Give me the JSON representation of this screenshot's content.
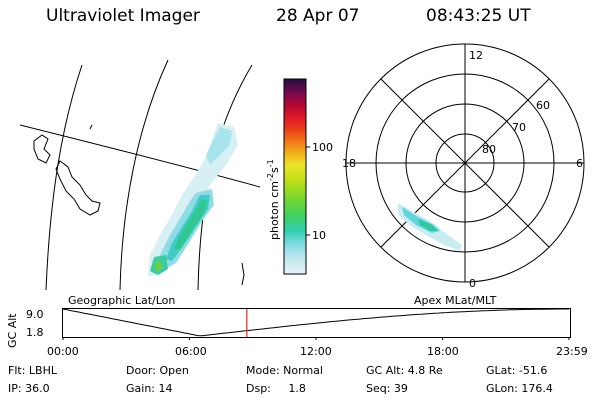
{
  "header": {
    "instrument": "Ultraviolet Imager",
    "date": "28 Apr 07",
    "time": "08:43:25 UT"
  },
  "colorbar": {
    "unit_label": "photon cm",
    "unit_exp1": "-2",
    "unit_s": "s",
    "unit_exp2": "-1",
    "tick_100": "100",
    "tick_10": "10",
    "colors": [
      "#e8f4f6",
      "#c8eaf0",
      "#9fe0ea",
      "#5fd6d6",
      "#2fd0b0",
      "#3cd068",
      "#7ad62c",
      "#b4e018",
      "#e8e428",
      "#f0b418",
      "#f08018",
      "#e84818",
      "#e01828",
      "#c80828",
      "#a00838",
      "#700858",
      "#400850",
      "#201040"
    ]
  },
  "geographic": {
    "label": "Geographic Lat/Lon"
  },
  "polar": {
    "label": "Apex MLat/MLT",
    "mlt_12": "12",
    "mlt_18": "18",
    "mlt_6": "6",
    "mlt_0": "0",
    "lat_60": "60",
    "lat_70": "70",
    "lat_80": "80"
  },
  "altitude_plot": {
    "ylabel": "GC Alt",
    "ytick_top": "9.0",
    "ytick_bottom": "1.8",
    "xticks": [
      "00:00",
      "06:00",
      "12:00",
      "18:00",
      "23:59"
    ],
    "current_marker_hours": 8.72,
    "marker_color": "#d03030"
  },
  "status": {
    "filter": "Flt: LBHL",
    "ip": "IP: 36.0",
    "door": "Door: Open",
    "gain": "Gain: 14",
    "mode": "Mode: Normal",
    "dsp": "Dsp:     1.8",
    "gc_alt": "GC Alt: 4.8 Re",
    "seq": "Seq: 39",
    "glat": "GLat: -51.6",
    "glon": "GLon: 176.4"
  }
}
